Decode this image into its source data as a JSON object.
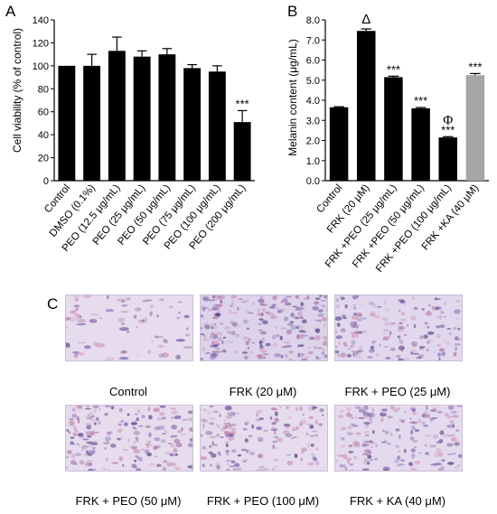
{
  "chart_data": [
    {
      "panel_label": "A",
      "type": "bar",
      "title": "",
      "xlabel": "",
      "ylabel": "Cell viability (% of control)",
      "ylim": [
        0,
        140
      ],
      "yticks": [
        "0",
        "20",
        "40",
        "60",
        "80",
        "100",
        "120",
        "140"
      ],
      "categories": [
        "Control",
        "DMSO (0.1%)",
        "PEO (12.5 μg/mL)",
        "PEO (25 μg/mL)",
        "PEO (50 μg/mL)",
        "PEO (75 μg/mL)",
        "PEO (100 μg/mL)",
        "PEO (200 μg/mL)"
      ],
      "values": [
        100,
        100,
        113,
        108,
        110,
        98,
        95,
        51
      ],
      "errors": [
        0,
        10,
        12,
        5,
        5,
        3,
        5,
        10
      ],
      "annotations": [
        "",
        "",
        "",
        "",
        "",
        "",
        "",
        "***"
      ],
      "colors": [
        "#000000",
        "#000000",
        "#000000",
        "#000000",
        "#000000",
        "#000000",
        "#000000",
        "#000000"
      ],
      "grid": false
    },
    {
      "panel_label": "B",
      "type": "bar",
      "title": "",
      "xlabel": "",
      "ylabel": "Melanin content (μg/mL)",
      "ylim": [
        0,
        8
      ],
      "yticks": [
        "0.0",
        "1.0",
        "2.0",
        "3.0",
        "4.0",
        "5.0",
        "6.0",
        "7.0",
        "8.0"
      ],
      "categories": [
        "Control",
        "FRK (20 μM)",
        "FRK +PEO (25 μg/mL)",
        "FRK +PEO (50 μg/mL)",
        "FRK +PEO (100 μg/mL)",
        "FRK +KA (40 μM)"
      ],
      "values": [
        3.65,
        7.45,
        5.15,
        3.6,
        2.15,
        5.25
      ],
      "errors": [
        0.03,
        0.1,
        0.05,
        0.04,
        0.04,
        0.08
      ],
      "annotations": [
        "",
        "Δ",
        "***",
        "***",
        "***",
        "***"
      ],
      "top_symbols": [
        "",
        "",
        "",
        "",
        "Φ",
        ""
      ],
      "colors": [
        "#000000",
        "#000000",
        "#000000",
        "#000000",
        "#000000",
        "#a6a6a6"
      ],
      "grid": false
    }
  ],
  "panel_c": {
    "label": "C",
    "captions": [
      "Control",
      "FRK (20 μM)",
      "FRK + PEO (25 μM)",
      "FRK + PEO (50 μM)",
      "FRK + PEO (100 μM)",
      "FRK + KA (40 μM)"
    ]
  }
}
